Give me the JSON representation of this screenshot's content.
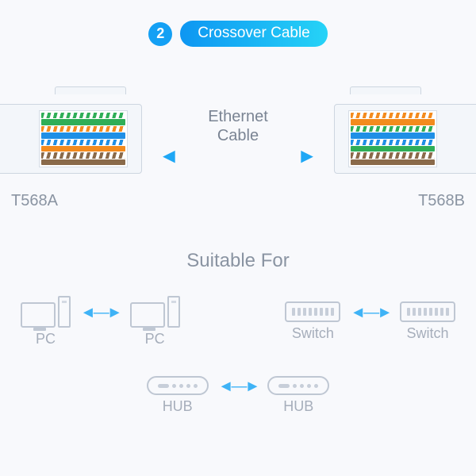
{
  "header": {
    "step_number": "2",
    "title": "Crossover Cable",
    "badge_bg": "#14a0f4",
    "pill_gradient_from": "#0d96f2",
    "pill_gradient_to": "#26d3f7"
  },
  "ethernet_label": "Ethernet\nCable",
  "connectors": {
    "left": {
      "label": "T568A",
      "standard": "T568A"
    },
    "right": {
      "label": "T568B",
      "standard": "T568B"
    }
  },
  "wire_colors": {
    "green": "#2fae57",
    "orange": "#f38b1e",
    "blue": "#1f8fe6",
    "brown": "#8a6a4a",
    "white": "#ffffff"
  },
  "wiring": {
    "T568A": [
      {
        "type": "stripe",
        "color": "green"
      },
      {
        "type": "solid",
        "color": "green"
      },
      {
        "type": "stripe",
        "color": "orange"
      },
      {
        "type": "solid",
        "color": "blue"
      },
      {
        "type": "stripe",
        "color": "blue"
      },
      {
        "type": "solid",
        "color": "orange"
      },
      {
        "type": "stripe",
        "color": "brown"
      },
      {
        "type": "solid",
        "color": "brown"
      }
    ],
    "T568B": [
      {
        "type": "stripe",
        "color": "orange"
      },
      {
        "type": "solid",
        "color": "orange"
      },
      {
        "type": "stripe",
        "color": "green"
      },
      {
        "type": "solid",
        "color": "blue"
      },
      {
        "type": "stripe",
        "color": "blue"
      },
      {
        "type": "solid",
        "color": "green"
      },
      {
        "type": "stripe",
        "color": "brown"
      },
      {
        "type": "solid",
        "color": "brown"
      }
    ]
  },
  "suitable_title": "Suitable For",
  "pairs": [
    {
      "a": {
        "icon": "pc",
        "label": "PC"
      },
      "b": {
        "icon": "pc",
        "label": "PC"
      }
    },
    {
      "a": {
        "icon": "switch",
        "label": "Switch"
      },
      "b": {
        "icon": "switch",
        "label": "Switch"
      }
    },
    {
      "a": {
        "icon": "hub",
        "label": "HUB"
      },
      "b": {
        "icon": "hub",
        "label": "HUB"
      }
    }
  ],
  "colors": {
    "page_bg": "#f8f9fc",
    "label_text": "#8a94a2",
    "sub_label": "#a6aebb",
    "arrow": "#1fa7f5",
    "outline": "#bfc7d3"
  }
}
